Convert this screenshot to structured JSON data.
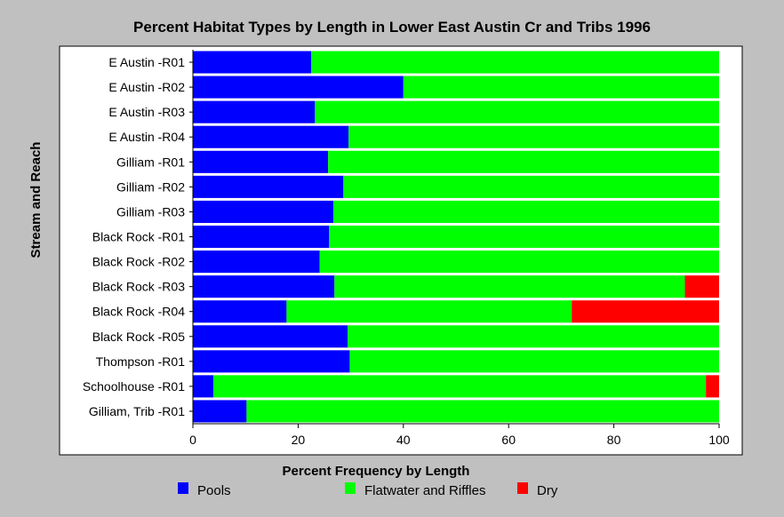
{
  "chart_data": {
    "type": "bar",
    "orientation": "horizontal",
    "stacked": true,
    "title": "Percent Habitat Types by Length in Lower East Austin Cr and Tribs 1996",
    "xlabel": "Percent Frequency by Length",
    "ylabel": "Stream and Reach",
    "xlim": [
      0,
      100
    ],
    "xticks": [
      0,
      20,
      40,
      60,
      80,
      100
    ],
    "grid": false,
    "legend_position": "bottom",
    "categories": [
      "E Austin -R01",
      "E Austin -R02",
      "E Austin -R03",
      "E Austin -R04",
      "Gilliam -R01",
      "Gilliam -R02",
      "Gilliam -R03",
      "Black Rock -R01",
      "Black Rock -R02",
      "Black Rock -R03",
      "Black Rock -R04",
      "Black Rock -R05",
      "Thompson -R01",
      "Schoolhouse -R01",
      "Gilliam, Trib -R01"
    ],
    "series": [
      {
        "name": "Pools",
        "color": "#0000ff",
        "values": [
          22.5,
          40.0,
          23.2,
          29.6,
          25.7,
          28.6,
          26.7,
          25.9,
          24.1,
          26.9,
          17.8,
          29.4,
          29.8,
          3.9,
          10.2
        ]
      },
      {
        "name": "Flatwater and Riffles",
        "color": "#00ff00",
        "values": [
          77.5,
          60.0,
          76.8,
          70.4,
          74.3,
          71.4,
          73.3,
          74.1,
          75.9,
          66.6,
          54.2,
          70.6,
          70.2,
          93.6,
          89.8
        ]
      },
      {
        "name": "Dry",
        "color": "#ff0000",
        "values": [
          0,
          0,
          0,
          0,
          0,
          0,
          0,
          0,
          0,
          6.5,
          28.0,
          0,
          0,
          2.5,
          0
        ]
      }
    ]
  },
  "colors": {
    "background": "#c0c0c0",
    "plot_background": "#ffffff"
  }
}
